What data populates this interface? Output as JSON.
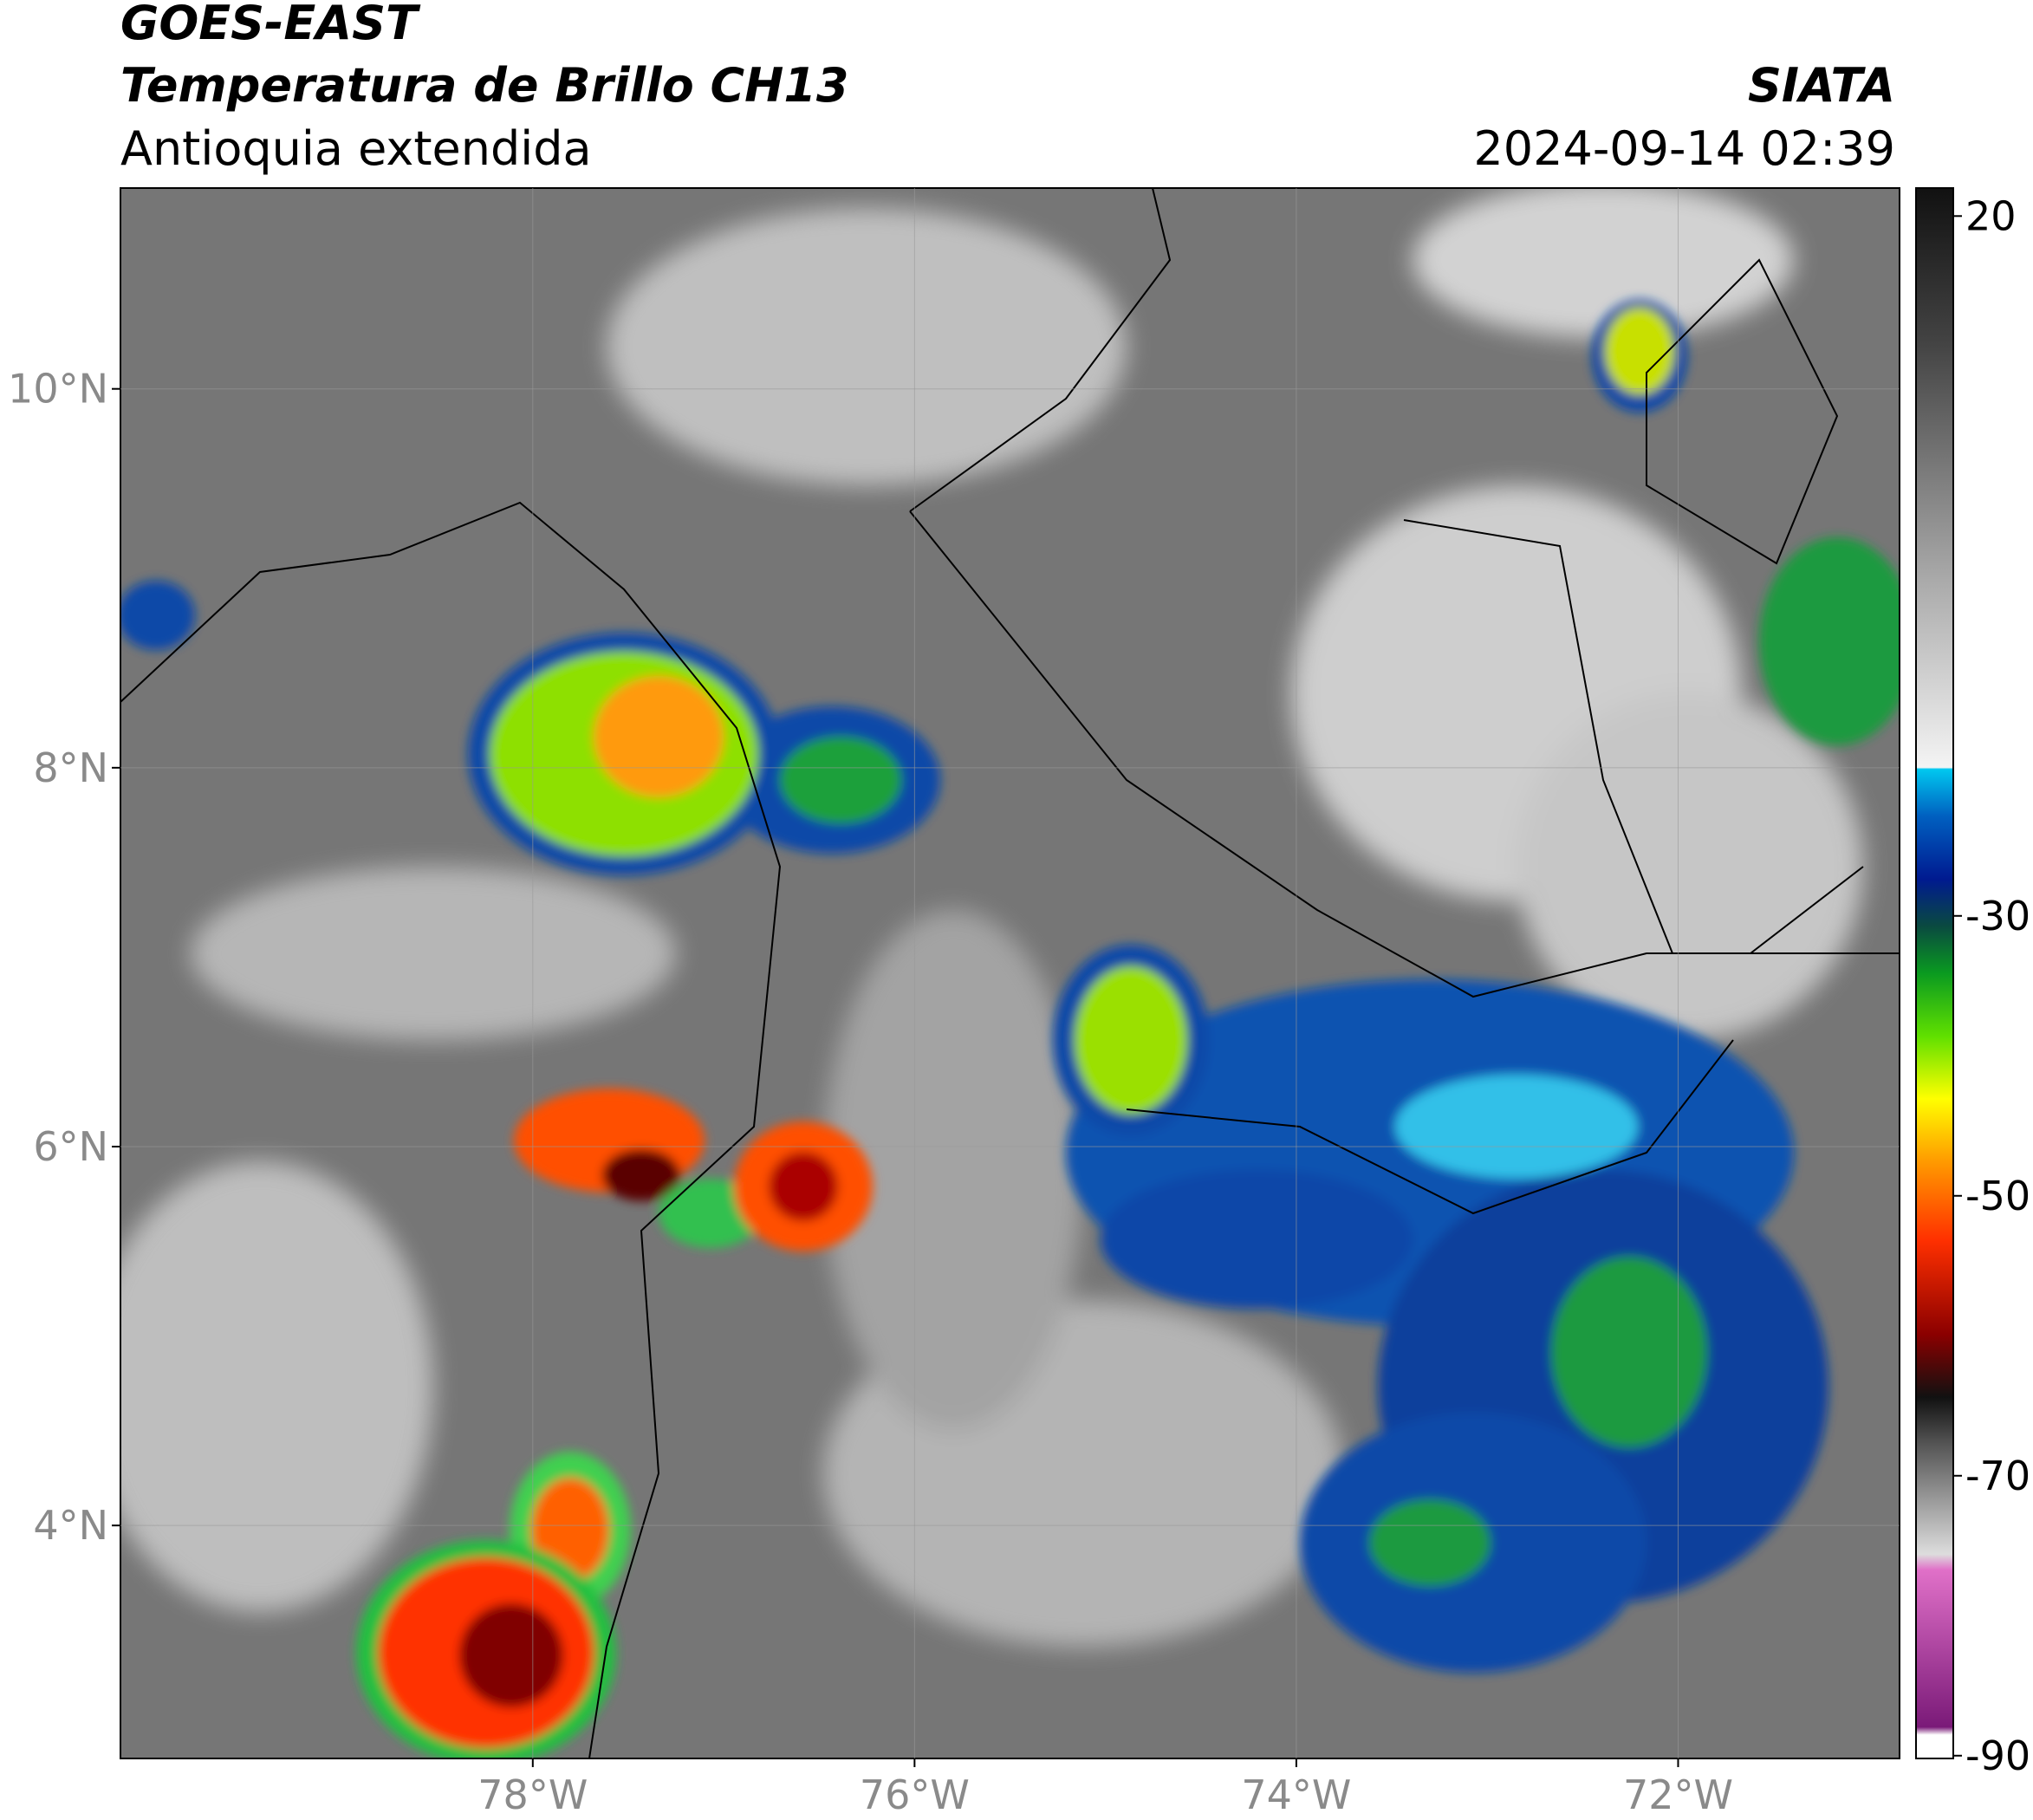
{
  "header": {
    "title": "GOES-EAST",
    "subtitle": "Temperatura de Brillo CH13",
    "region": "Antioquia extendida",
    "source": "SIATA",
    "datetime": "2024-09-14 02:39"
  },
  "map": {
    "xlim": [
      -80.16,
      -70.84
    ],
    "ylim": [
      2.77,
      11.06
    ],
    "xticks": [
      {
        "value": -78,
        "label": "78°W"
      },
      {
        "value": -76,
        "label": "76°W"
      },
      {
        "value": -74,
        "label": "74°W"
      },
      {
        "value": -72,
        "label": "72°W"
      }
    ],
    "yticks": [
      {
        "value": 4,
        "label": "4°N"
      },
      {
        "value": 6,
        "label": "6°N"
      },
      {
        "value": 8,
        "label": "8°N"
      },
      {
        "value": 10,
        "label": "10°N"
      }
    ],
    "grid": true
  },
  "colorbar": {
    "lim": [
      -90.2,
      22
    ],
    "ticks": [
      -90,
      -70,
      -50,
      -30,
      20
    ]
  }
}
